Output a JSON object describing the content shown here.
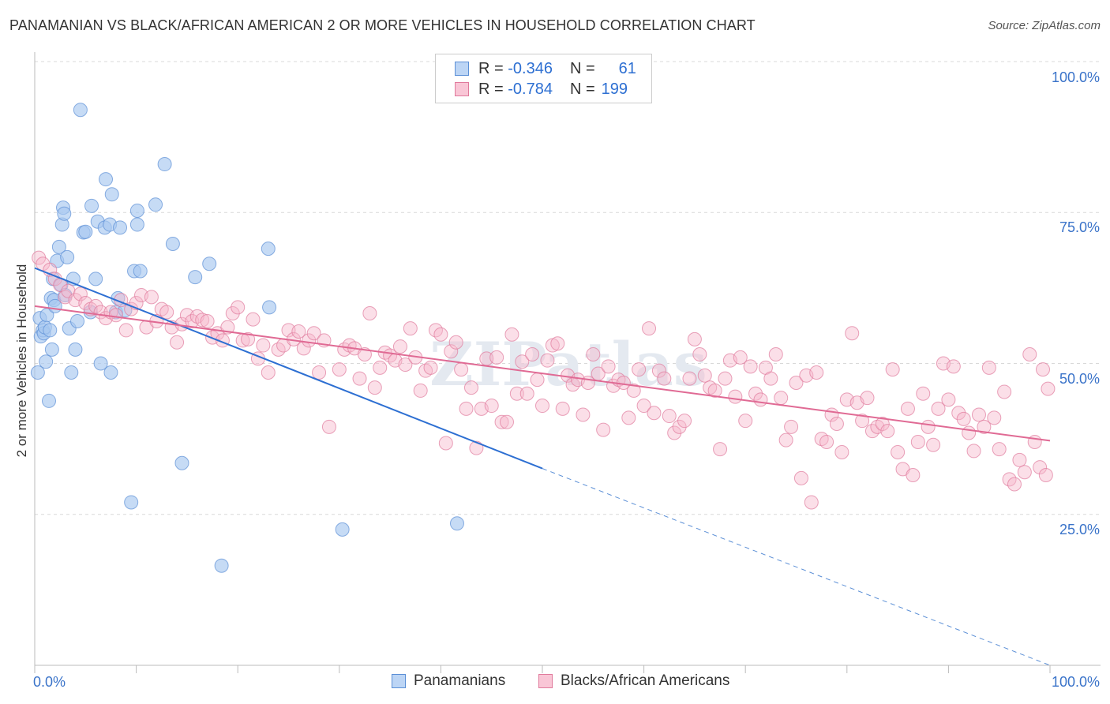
{
  "title": "PANAMANIAN VS BLACK/AFRICAN AMERICAN 2 OR MORE VEHICLES IN HOUSEHOLD CORRELATION CHART",
  "source": "Source: ZipAtlas.com",
  "watermark": "ZIPatlas",
  "legend": {
    "rows": [
      {
        "r_label": "R =",
        "r_value": "-0.346",
        "n_label": "N =",
        "n_value": "61",
        "color": "#a8c8f0",
        "border": "#5b8fd6"
      },
      {
        "r_label": "R =",
        "r_value": "-0.784",
        "n_label": "N =",
        "n_value": "199",
        "color": "#f7b8cc",
        "border": "#e07a9c"
      }
    ]
  },
  "bottom_legend": [
    {
      "label": "Panamanians",
      "color": "#bcd5f5",
      "border": "#5b8fd6"
    },
    {
      "label": "Blacks/African Americans",
      "color": "#f9c6d6",
      "border": "#e07a9c"
    }
  ],
  "chart_data": {
    "type": "scatter",
    "title": "PANAMANIAN VS BLACK/AFRICAN AMERICAN 2 OR MORE VEHICLES IN HOUSEHOLD CORRELATION CHART",
    "xlabel": "",
    "ylabel": "2 or more Vehicles in Household",
    "xlim": [
      0,
      100
    ],
    "ylim": [
      0,
      100
    ],
    "x_tick_labels": [
      "0.0%",
      "100.0%"
    ],
    "y_tick_labels": [
      "25.0%",
      "50.0%",
      "75.0%",
      "100.0%"
    ],
    "y_ticks": [
      25,
      50,
      75,
      100
    ],
    "grid": true,
    "series": [
      {
        "name": "Panamanians",
        "color": "#5b8fd6",
        "fill": "#a8c8f0",
        "trend": {
          "x0": 0,
          "y0": 65.8,
          "x1": 50,
          "y1": 32.6,
          "dashed_to_x": 100,
          "dashed_to_y": 0
        },
        "points": [
          [
            0.3,
            48.5
          ],
          [
            0.5,
            57.5
          ],
          [
            0.6,
            54.5
          ],
          [
            0.8,
            55.5
          ],
          [
            0.9,
            55.0
          ],
          [
            1.0,
            56.0
          ],
          [
            1.1,
            50.3
          ],
          [
            1.2,
            58.0
          ],
          [
            1.4,
            43.8
          ],
          [
            1.5,
            55.5
          ],
          [
            1.6,
            60.8
          ],
          [
            1.7,
            52.3
          ],
          [
            1.8,
            64.0
          ],
          [
            1.9,
            60.5
          ],
          [
            2.0,
            59.5
          ],
          [
            2.2,
            67.0
          ],
          [
            2.4,
            69.3
          ],
          [
            2.6,
            63.0
          ],
          [
            2.7,
            73.0
          ],
          [
            2.8,
            75.8
          ],
          [
            2.9,
            74.8
          ],
          [
            3.0,
            61.3
          ],
          [
            3.2,
            67.6
          ],
          [
            3.4,
            55.8
          ],
          [
            3.6,
            48.5
          ],
          [
            3.8,
            64.0
          ],
          [
            4.0,
            52.3
          ],
          [
            4.2,
            57.0
          ],
          [
            4.5,
            92.0
          ],
          [
            4.8,
            71.7
          ],
          [
            5.0,
            71.8
          ],
          [
            5.5,
            58.5
          ],
          [
            5.6,
            76.1
          ],
          [
            6.0,
            64.0
          ],
          [
            6.2,
            73.5
          ],
          [
            6.5,
            50.0
          ],
          [
            6.9,
            72.5
          ],
          [
            7.0,
            80.5
          ],
          [
            7.4,
            73.0
          ],
          [
            7.5,
            48.5
          ],
          [
            7.6,
            78.0
          ],
          [
            8.0,
            58.5
          ],
          [
            8.2,
            60.8
          ],
          [
            8.4,
            72.5
          ],
          [
            8.9,
            58.8
          ],
          [
            9.5,
            27.0
          ],
          [
            9.8,
            65.3
          ],
          [
            10.1,
            75.3
          ],
          [
            10.1,
            73.0
          ],
          [
            10.4,
            65.3
          ],
          [
            11.9,
            76.3
          ],
          [
            12.8,
            83.0
          ],
          [
            13.6,
            69.8
          ],
          [
            14.5,
            33.5
          ],
          [
            15.8,
            64.3
          ],
          [
            17.2,
            66.5
          ],
          [
            18.4,
            16.5
          ],
          [
            23.0,
            69.0
          ],
          [
            23.1,
            59.3
          ],
          [
            30.3,
            22.5
          ],
          [
            41.6,
            23.5
          ]
        ]
      },
      {
        "name": "Blacks/African Americans",
        "color": "#e07a9c",
        "fill": "#f7b8cc",
        "trend": {
          "x0": 0,
          "y0": 59.5,
          "x1": 100,
          "y1": 37.2
        },
        "points": [
          [
            0.4,
            67.5
          ],
          [
            0.8,
            66.5
          ],
          [
            1.5,
            65.5
          ],
          [
            2.0,
            64.0
          ],
          [
            2.5,
            63.0
          ],
          [
            3.0,
            61.0
          ],
          [
            3.3,
            62.0
          ],
          [
            4.0,
            60.5
          ],
          [
            4.5,
            61.5
          ],
          [
            5.0,
            60.0
          ],
          [
            5.5,
            59.0
          ],
          [
            6.0,
            59.5
          ],
          [
            6.5,
            58.5
          ],
          [
            7.0,
            57.5
          ],
          [
            7.5,
            58.5
          ],
          [
            8.0,
            58.0
          ],
          [
            8.5,
            60.5
          ],
          [
            9.0,
            55.5
          ],
          [
            9.5,
            59.0
          ],
          [
            10.0,
            60.0
          ],
          [
            10.5,
            61.3
          ],
          [
            11.0,
            56.0
          ],
          [
            11.5,
            61.0
          ],
          [
            12.0,
            57.0
          ],
          [
            12.5,
            59.0
          ],
          [
            13.0,
            58.5
          ],
          [
            13.5,
            56.0
          ],
          [
            14.0,
            53.5
          ],
          [
            14.5,
            56.5
          ],
          [
            15.0,
            58.0
          ],
          [
            15.5,
            57.0
          ],
          [
            16.0,
            57.8
          ],
          [
            16.5,
            57.2
          ],
          [
            17.0,
            57.0
          ],
          [
            17.5,
            54.3
          ],
          [
            18.0,
            55.0
          ],
          [
            18.5,
            53.8
          ],
          [
            19.0,
            56.0
          ],
          [
            19.5,
            58.3
          ],
          [
            20.0,
            59.3
          ],
          [
            20.5,
            53.8
          ],
          [
            21.0,
            54.0
          ],
          [
            21.5,
            57.3
          ],
          [
            22.0,
            50.8
          ],
          [
            22.5,
            53.0
          ],
          [
            23.0,
            48.5
          ],
          [
            24.0,
            52.3
          ],
          [
            24.5,
            53.0
          ],
          [
            25.0,
            55.5
          ],
          [
            25.5,
            54.0
          ],
          [
            26.0,
            55.3
          ],
          [
            26.5,
            52.5
          ],
          [
            27.0,
            53.8
          ],
          [
            27.5,
            55.0
          ],
          [
            28.0,
            48.5
          ],
          [
            28.5,
            53.8
          ],
          [
            29.0,
            39.5
          ],
          [
            30.0,
            49.0
          ],
          [
            30.5,
            52.3
          ],
          [
            31.0,
            53.0
          ],
          [
            31.5,
            52.5
          ],
          [
            32.0,
            47.5
          ],
          [
            32.5,
            51.5
          ],
          [
            33.0,
            58.3
          ],
          [
            33.5,
            46.0
          ],
          [
            34.0,
            49.3
          ],
          [
            34.5,
            51.8
          ],
          [
            35.0,
            51.3
          ],
          [
            35.5,
            50.5
          ],
          [
            36.0,
            52.8
          ],
          [
            36.5,
            49.8
          ],
          [
            37.0,
            55.8
          ],
          [
            37.5,
            51.0
          ],
          [
            38.0,
            45.5
          ],
          [
            38.5,
            48.8
          ],
          [
            39.0,
            49.3
          ],
          [
            39.5,
            55.5
          ],
          [
            40.0,
            54.8
          ],
          [
            40.5,
            36.8
          ],
          [
            41.0,
            52.0
          ],
          [
            41.5,
            53.5
          ],
          [
            42.0,
            49.0
          ],
          [
            42.5,
            42.5
          ],
          [
            43.0,
            46.0
          ],
          [
            43.5,
            36.0
          ],
          [
            44.0,
            42.5
          ],
          [
            44.5,
            50.8
          ],
          [
            45.0,
            43.0
          ],
          [
            45.5,
            51.0
          ],
          [
            46.0,
            40.3
          ],
          [
            46.5,
            40.3
          ],
          [
            47.0,
            54.8
          ],
          [
            47.5,
            45.0
          ],
          [
            48.0,
            50.3
          ],
          [
            48.5,
            45.0
          ],
          [
            49.0,
            51.5
          ],
          [
            49.5,
            47.3
          ],
          [
            50.0,
            43.0
          ],
          [
            50.5,
            50.5
          ],
          [
            51.0,
            53.0
          ],
          [
            51.5,
            53.3
          ],
          [
            52.0,
            42.5
          ],
          [
            52.5,
            48.0
          ],
          [
            53.0,
            46.5
          ],
          [
            53.5,
            47.3
          ],
          [
            54.0,
            41.5
          ],
          [
            54.5,
            46.8
          ],
          [
            55.0,
            51.5
          ],
          [
            55.5,
            48.3
          ],
          [
            56.0,
            39.0
          ],
          [
            56.5,
            49.5
          ],
          [
            57.0,
            46.3
          ],
          [
            57.5,
            47.3
          ],
          [
            58.0,
            46.8
          ],
          [
            58.5,
            41.0
          ],
          [
            59.0,
            45.5
          ],
          [
            59.5,
            49.0
          ],
          [
            60.0,
            43.0
          ],
          [
            60.5,
            55.8
          ],
          [
            61.0,
            41.8
          ],
          [
            61.5,
            48.8
          ],
          [
            62.0,
            47.5
          ],
          [
            62.5,
            41.3
          ],
          [
            63.0,
            38.5
          ],
          [
            63.5,
            39.5
          ],
          [
            64.0,
            40.5
          ],
          [
            64.5,
            47.5
          ],
          [
            65.0,
            54.0
          ],
          [
            65.5,
            51.5
          ],
          [
            66.0,
            48.0
          ],
          [
            66.5,
            46.0
          ],
          [
            67.0,
            45.5
          ],
          [
            67.5,
            35.8
          ],
          [
            68.0,
            47.5
          ],
          [
            68.5,
            50.5
          ],
          [
            69.0,
            44.5
          ],
          [
            69.5,
            51.0
          ],
          [
            70.0,
            40.5
          ],
          [
            70.5,
            49.5
          ],
          [
            71.0,
            45.0
          ],
          [
            71.5,
            44.0
          ],
          [
            72.0,
            49.3
          ],
          [
            72.5,
            47.5
          ],
          [
            73.0,
            51.5
          ],
          [
            73.5,
            44.3
          ],
          [
            74.0,
            37.3
          ],
          [
            74.5,
            39.5
          ],
          [
            75.0,
            46.8
          ],
          [
            75.5,
            31.0
          ],
          [
            76.0,
            48.0
          ],
          [
            76.5,
            27.0
          ],
          [
            77.0,
            48.5
          ],
          [
            77.5,
            37.5
          ],
          [
            78.0,
            37.0
          ],
          [
            78.5,
            41.5
          ],
          [
            79.0,
            40.0
          ],
          [
            79.5,
            35.3
          ],
          [
            80.0,
            44.0
          ],
          [
            80.5,
            55.0
          ],
          [
            81.0,
            43.5
          ],
          [
            81.5,
            40.5
          ],
          [
            82.0,
            44.3
          ],
          [
            82.5,
            38.8
          ],
          [
            83.0,
            39.5
          ],
          [
            83.5,
            40.0
          ],
          [
            84.0,
            38.8
          ],
          [
            84.5,
            49.0
          ],
          [
            85.0,
            35.3
          ],
          [
            85.5,
            32.5
          ],
          [
            86.0,
            42.5
          ],
          [
            86.5,
            31.5
          ],
          [
            87.0,
            37.0
          ],
          [
            87.5,
            45.0
          ],
          [
            88.0,
            39.5
          ],
          [
            88.5,
            36.5
          ],
          [
            89.0,
            42.5
          ],
          [
            89.5,
            50.0
          ],
          [
            90.0,
            44.0
          ],
          [
            90.5,
            49.5
          ],
          [
            91.0,
            41.8
          ],
          [
            91.5,
            40.8
          ],
          [
            92.0,
            38.5
          ],
          [
            92.5,
            35.5
          ],
          [
            93.0,
            41.5
          ],
          [
            93.5,
            39.5
          ],
          [
            94.0,
            49.3
          ],
          [
            94.5,
            41.0
          ],
          [
            95.0,
            35.8
          ],
          [
            95.5,
            45.3
          ],
          [
            96.0,
            30.8
          ],
          [
            96.5,
            30.0
          ],
          [
            97.0,
            34.0
          ],
          [
            97.5,
            32.0
          ],
          [
            98.0,
            51.5
          ],
          [
            98.5,
            37.0
          ],
          [
            99.0,
            32.8
          ],
          [
            99.3,
            49.0
          ],
          [
            99.6,
            31.5
          ],
          [
            99.8,
            45.8
          ]
        ]
      }
    ]
  }
}
